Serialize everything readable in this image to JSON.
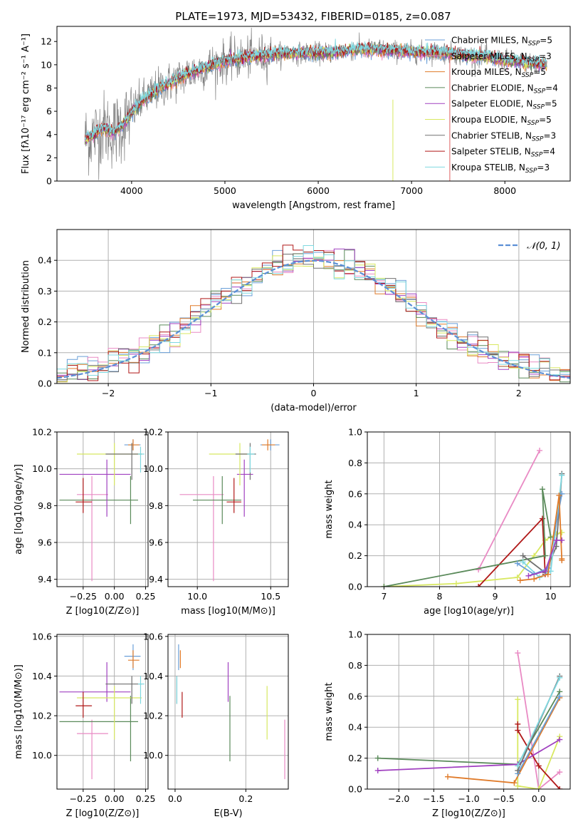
{
  "title": "PLATE=1973, MJD=53432, FIBERID=0185, z=0.087",
  "colors": {
    "chabrier_miles": "#6a9fd8",
    "salpeter_miles": "#e98ac4",
    "kroupa_miles": "#e07b2a",
    "chabrier_elodie": "#5a8a5a",
    "salpeter_elodie": "#a040c0",
    "kroupa_elodie": "#d8e860",
    "chabrier_stelib": "#707070",
    "salpeter_stelib": "#b01818",
    "kroupa_stelib": "#7fd8e0",
    "grid": "#b0b0b0",
    "gaussian": "#5b8fd6"
  },
  "chart_data": [
    {
      "id": "spectrum",
      "type": "line",
      "xlabel": "wavelength [Angstrom, rest frame]",
      "ylabel": "Flux [fλ10⁻¹⁷ erg cm⁻² s⁻¹ A⁻¹]",
      "xlim": [
        3200,
        8700
      ],
      "ylim": [
        0,
        13.3
      ],
      "xticks": [
        4000,
        5000,
        6000,
        7000,
        8000
      ],
      "yticks": [
        0,
        2,
        4,
        6,
        8,
        10,
        12
      ],
      "grid": false,
      "legend_position": "right",
      "data_range": [
        3500,
        8450
      ],
      "continuum": {
        "x": [
          3500,
          3600,
          3700,
          3800,
          3900,
          4000,
          4100,
          4200,
          4300,
          4400,
          4500,
          4600,
          4700,
          4800,
          4900,
          5000,
          5200,
          5400,
          5600,
          5800,
          6000,
          6200,
          6400,
          6600,
          6800,
          7000,
          7200,
          7400,
          7600,
          7800,
          8000,
          8200,
          8450
        ],
        "y": [
          3.6,
          4.0,
          4.6,
          4.2,
          4.8,
          5.8,
          6.8,
          7.4,
          8.0,
          8.4,
          8.8,
          9.2,
          9.5,
          9.8,
          10.1,
          10.3,
          10.6,
          10.8,
          11.0,
          11.0,
          11.0,
          11.1,
          11.3,
          11.3,
          11.2,
          11.1,
          11.1,
          11.0,
          10.8,
          10.7,
          10.4,
          10.2,
          10.0
        ]
      },
      "series": [
        {
          "name": "Chabrier MILES, N_SSP=5",
          "color_key": "chabrier_miles"
        },
        {
          "name": "Salpeter MILES, N_SSP=3",
          "color_key": "salpeter_miles"
        },
        {
          "name": "Kroupa MILES, N_SSP=5",
          "color_key": "kroupa_miles"
        },
        {
          "name": "Chabrier ELODIE, N_SSP=4",
          "color_key": "chabrier_elodie"
        },
        {
          "name": "Salpeter ELODIE, N_SSP=5",
          "color_key": "salpeter_elodie"
        },
        {
          "name": "Kroupa ELODIE, N_SSP=5",
          "color_key": "kroupa_elodie"
        },
        {
          "name": "Chabrier STELIB, N_SSP=3",
          "color_key": "chabrier_stelib"
        },
        {
          "name": "Salpeter STELIB, N_SSP=4",
          "color_key": "salpeter_stelib"
        },
        {
          "name": "Kroupa STELIB, N_SSP=3",
          "color_key": "kroupa_stelib"
        }
      ]
    },
    {
      "id": "residuals",
      "type": "line",
      "xlabel": "(data-model)/error",
      "ylabel": "Normed distribution",
      "xlim": [
        -2.5,
        2.5
      ],
      "ylim": [
        0,
        0.5
      ],
      "xticks": [
        -2,
        -1,
        0,
        1,
        2
      ],
      "yticks": [
        0.0,
        0.1,
        0.2,
        0.3,
        0.4
      ],
      "grid": true,
      "legend_position": "top-right",
      "gaussian_label": "𝒩(0, 1)",
      "bin_width": 0.1
    },
    {
      "id": "z_age",
      "type": "scatter",
      "xlabel": "Z [log10(Z/Z⊙)]",
      "ylabel": "age [log10(age/yr)]",
      "xlim": [
        -0.46,
        0.27
      ],
      "ylim": [
        9.36,
        10.2
      ],
      "xticks": [
        -0.25,
        0.0,
        0.25
      ],
      "yticks": [
        9.4,
        9.6,
        9.8,
        10.0,
        10.2
      ],
      "grid": true,
      "points": [
        {
          "series": "chabrier_miles",
          "x": 0.15,
          "y": 10.13,
          "xerr": [
            0.07,
            0.06
          ],
          "yerr": [
            0.03,
            0.03
          ]
        },
        {
          "series": "salpeter_miles",
          "x": -0.18,
          "y": 9.86,
          "xerr": [
            0.12,
            0.13
          ],
          "yerr": [
            0.47,
            0.1
          ]
        },
        {
          "series": "kroupa_miles",
          "x": 0.15,
          "y": 10.13,
          "xerr": [
            0.04,
            0.05
          ],
          "yerr": [
            0.03,
            0.03
          ]
        },
        {
          "series": "chabrier_elodie",
          "x": 0.13,
          "y": 9.83,
          "xerr": [
            0.57,
            0.06
          ],
          "yerr": [
            0.13,
            0.13
          ]
        },
        {
          "series": "salpeter_elodie",
          "x": -0.06,
          "y": 9.97,
          "xerr": [
            0.38,
            0.19
          ],
          "yerr": [
            0.23,
            0.08
          ]
        },
        {
          "series": "kroupa_elodie",
          "x": 0.0,
          "y": 10.08,
          "xerr": [
            0.3,
            0.22
          ],
          "yerr": [
            0.17,
            0.06
          ]
        },
        {
          "series": "chabrier_stelib",
          "x": 0.14,
          "y": 10.08,
          "xerr": [
            0.21,
            0.08
          ],
          "yerr": [
            0.14,
            0.06
          ]
        },
        {
          "series": "salpeter_stelib",
          "x": -0.25,
          "y": 9.82,
          "xerr": [
            0.06,
            0.07
          ],
          "yerr": [
            0.06,
            0.13
          ]
        },
        {
          "series": "kroupa_stelib",
          "x": 0.21,
          "y": 10.08,
          "xerr": [
            0.02,
            0.03
          ],
          "yerr": [
            0.1,
            0.04
          ]
        }
      ]
    },
    {
      "id": "mass_age",
      "type": "scatter",
      "xlabel": "mass [log10(M/M⊙)]",
      "ylabel": "",
      "xlim": [
        9.8,
        10.62
      ],
      "ylim": [
        9.36,
        10.2
      ],
      "xticks": [
        10.0,
        10.5
      ],
      "yticks": [
        9.4,
        9.6,
        9.8,
        10.0,
        10.2
      ],
      "grid": true,
      "points": [
        {
          "series": "chabrier_miles",
          "x": 10.5,
          "y": 10.13,
          "xerr": [
            0.07,
            0.06
          ],
          "yerr": [
            0.03,
            0.03
          ]
        },
        {
          "series": "salpeter_miles",
          "x": 10.11,
          "y": 9.86,
          "xerr": [
            0.23,
            0.07
          ],
          "yerr": [
            0.47,
            0.1
          ]
        },
        {
          "series": "kroupa_miles",
          "x": 10.48,
          "y": 10.13,
          "xerr": [
            0.04,
            0.05
          ],
          "yerr": [
            0.03,
            0.03
          ]
        },
        {
          "series": "chabrier_elodie",
          "x": 10.17,
          "y": 9.83,
          "xerr": [
            0.2,
            0.13
          ],
          "yerr": [
            0.13,
            0.13
          ]
        },
        {
          "series": "salpeter_elodie",
          "x": 10.32,
          "y": 9.97,
          "xerr": [
            0.05,
            0.06
          ],
          "yerr": [
            0.23,
            0.08
          ]
        },
        {
          "series": "kroupa_elodie",
          "x": 10.29,
          "y": 10.08,
          "xerr": [
            0.21,
            0.06
          ],
          "yerr": [
            0.17,
            0.06
          ]
        },
        {
          "series": "chabrier_stelib",
          "x": 10.36,
          "y": 10.08,
          "xerr": [
            0.1,
            0.04
          ],
          "yerr": [
            0.14,
            0.06
          ]
        },
        {
          "series": "salpeter_stelib",
          "x": 10.25,
          "y": 9.82,
          "xerr": [
            0.05,
            0.05
          ],
          "yerr": [
            0.06,
            0.13
          ]
        },
        {
          "series": "kroupa_stelib",
          "x": 10.36,
          "y": 10.08,
          "xerr": [
            0.02,
            0.03
          ],
          "yerr": [
            0.1,
            0.04
          ]
        }
      ]
    },
    {
      "id": "age_weight",
      "type": "line",
      "xlabel": "age [log10(age/yr)]",
      "ylabel": "mass weight",
      "xlim": [
        6.7,
        10.35
      ],
      "ylim": [
        0,
        1.0
      ],
      "xticks": [
        7,
        8,
        9,
        10
      ],
      "yticks": [
        0.0,
        0.2,
        0.4,
        0.6,
        0.8,
        1.0
      ],
      "grid": true,
      "series": [
        {
          "key": "kroupa_elodie",
          "x": [
            7.0,
            8.3,
            9.4,
            9.7,
            9.9,
            10.1,
            10.2
          ],
          "y": [
            0.0,
            0.02,
            0.06,
            0.2,
            0.3,
            0.34,
            0.35
          ]
        },
        {
          "key": "salpeter_miles",
          "x": [
            8.7,
            9.8
          ],
          "y": [
            0.11,
            0.88
          ]
        },
        {
          "key": "salpeter_stelib",
          "x": [
            8.7,
            9.85,
            9.9
          ],
          "y": [
            0.0,
            0.44,
            0.08
          ]
        },
        {
          "key": "chabrier_elodie",
          "x": [
            7.0,
            9.9,
            9.85,
            10.0
          ],
          "y": [
            0.0,
            0.2,
            0.63,
            0.32
          ]
        },
        {
          "key": "chabrier_stelib",
          "x": [
            9.5,
            9.9,
            10.1,
            10.2
          ],
          "y": [
            0.2,
            0.09,
            0.26,
            0.73
          ]
        },
        {
          "key": "kroupa_stelib",
          "x": [
            9.5,
            9.8,
            10.0,
            10.2
          ],
          "y": [
            0.16,
            0.06,
            0.1,
            0.72
          ]
        },
        {
          "key": "chabrier_miles",
          "x": [
            9.4,
            9.7,
            9.95,
            10.2
          ],
          "y": [
            0.15,
            0.08,
            0.12,
            0.6
          ]
        },
        {
          "key": "kroupa_miles",
          "x": [
            9.45,
            9.7,
            9.95,
            10.15,
            10.2,
            10.2
          ],
          "y": [
            0.04,
            0.05,
            0.08,
            0.59,
            0.17,
            0.18
          ]
        },
        {
          "key": "salpeter_elodie",
          "x": [
            9.6,
            9.9,
            10.1,
            10.2
          ],
          "y": [
            0.07,
            0.1,
            0.3,
            0.3
          ]
        }
      ]
    },
    {
      "id": "z_mass",
      "type": "scatter",
      "xlabel": "Z [log10(Z/Z⊙)]",
      "ylabel": "mass [log10(M/M⊙)]",
      "xlim": [
        -0.46,
        0.27
      ],
      "ylim": [
        9.83,
        10.61
      ],
      "xticks": [
        -0.25,
        0.0,
        0.25
      ],
      "yticks": [
        10.0,
        10.2,
        10.4,
        10.6
      ],
      "grid": true,
      "points": [
        {
          "series": "chabrier_miles",
          "x": 0.15,
          "y": 10.5,
          "xerr": [
            0.07,
            0.06
          ],
          "yerr": [
            0.07,
            0.06
          ]
        },
        {
          "series": "salpeter_miles",
          "x": -0.18,
          "y": 10.11,
          "xerr": [
            0.12,
            0.13
          ],
          "yerr": [
            0.23,
            0.07
          ]
        },
        {
          "series": "kroupa_miles",
          "x": 0.15,
          "y": 10.48,
          "xerr": [
            0.04,
            0.05
          ],
          "yerr": [
            0.04,
            0.05
          ]
        },
        {
          "series": "chabrier_elodie",
          "x": 0.13,
          "y": 10.17,
          "xerr": [
            0.57,
            0.06
          ],
          "yerr": [
            0.2,
            0.13
          ]
        },
        {
          "series": "salpeter_elodie",
          "x": -0.06,
          "y": 10.32,
          "xerr": [
            0.38,
            0.19
          ],
          "yerr": [
            0.05,
            0.15
          ]
        },
        {
          "series": "kroupa_elodie",
          "x": 0.0,
          "y": 10.29,
          "xerr": [
            0.3,
            0.22
          ],
          "yerr": [
            0.21,
            0.06
          ]
        },
        {
          "series": "chabrier_stelib",
          "x": 0.14,
          "y": 10.36,
          "xerr": [
            0.21,
            0.08
          ],
          "yerr": [
            0.1,
            0.04
          ]
        },
        {
          "series": "salpeter_stelib",
          "x": -0.25,
          "y": 10.25,
          "xerr": [
            0.06,
            0.07
          ],
          "yerr": [
            0.06,
            0.07
          ]
        },
        {
          "series": "kroupa_stelib",
          "x": 0.21,
          "y": 10.36,
          "xerr": [
            0.02,
            0.03
          ],
          "yerr": [
            0.1,
            0.04
          ]
        }
      ]
    },
    {
      "id": "ebv_mass",
      "type": "scatter",
      "xlabel": "E(B-V)",
      "ylabel": "",
      "xlim": [
        -0.02,
        0.32
      ],
      "ylim": [
        9.83,
        10.61
      ],
      "xticks": [
        0.0,
        0.2
      ],
      "yticks": [
        10.0,
        10.2,
        10.4,
        10.6
      ],
      "grid": true,
      "points": [
        {
          "series": "chabrier_miles",
          "x": 0.01,
          "y": 10.5,
          "xerr": [
            0,
            0
          ],
          "yerr": [
            0.07,
            0.06
          ]
        },
        {
          "series": "kroupa_miles",
          "x": 0.015,
          "y": 10.48,
          "xerr": [
            0,
            0
          ],
          "yerr": [
            0.04,
            0.05
          ]
        },
        {
          "series": "salpeter_stelib",
          "x": 0.02,
          "y": 10.25,
          "xerr": [
            0,
            0
          ],
          "yerr": [
            0.06,
            0.07
          ]
        },
        {
          "series": "chabrier_stelib",
          "x": 0.005,
          "y": 10.36,
          "xerr": [
            0,
            0
          ],
          "yerr": [
            0.1,
            0.04
          ]
        },
        {
          "series": "kroupa_stelib",
          "x": 0.005,
          "y": 10.36,
          "xerr": [
            0,
            0
          ],
          "yerr": [
            0.1,
            0.04
          ]
        },
        {
          "series": "salpeter_elodie",
          "x": 0.15,
          "y": 10.32,
          "xerr": [
            0,
            0
          ],
          "yerr": [
            0.05,
            0.15
          ]
        },
        {
          "series": "chabrier_elodie",
          "x": 0.155,
          "y": 10.17,
          "xerr": [
            0,
            0
          ],
          "yerr": [
            0.2,
            0.13
          ]
        },
        {
          "series": "kroupa_elodie",
          "x": 0.26,
          "y": 10.29,
          "xerr": [
            0,
            0
          ],
          "yerr": [
            0.21,
            0.06
          ]
        },
        {
          "series": "salpeter_miles",
          "x": 0.31,
          "y": 10.11,
          "xerr": [
            0,
            0
          ],
          "yerr": [
            0.23,
            0.07
          ]
        }
      ]
    },
    {
      "id": "z_weight",
      "type": "line",
      "xlabel": "Z [log10(Z/Z⊙)]",
      "ylabel": "mass weight",
      "xlim": [
        -2.45,
        0.45
      ],
      "ylim": [
        0,
        1.0
      ],
      "xticks": [
        -2.0,
        -1.5,
        -1.0,
        -0.5,
        0.0
      ],
      "yticks": [
        0.0,
        0.2,
        0.4,
        0.6,
        0.8,
        1.0
      ],
      "grid": true,
      "series": [
        {
          "key": "salpeter_miles",
          "x": [
            -0.3,
            0.0,
            0.3
          ],
          "y": [
            0.88,
            0.0,
            0.11
          ]
        },
        {
          "key": "kroupa_elodie",
          "x": [
            -0.3,
            -0.3,
            0.0,
            0.3
          ],
          "y": [
            0.58,
            0.02,
            0.0,
            0.34
          ]
        },
        {
          "key": "salpeter_stelib",
          "x": [
            -0.3,
            -0.3,
            0.0,
            0.3
          ],
          "y": [
            0.42,
            0.38,
            0.15,
            0.0
          ]
        },
        {
          "key": "chabrier_elodie",
          "x": [
            -2.3,
            -0.3,
            0.3
          ],
          "y": [
            0.2,
            0.16,
            0.63
          ]
        },
        {
          "key": "salpeter_elodie",
          "x": [
            -2.3,
            -0.3,
            0.3
          ],
          "y": [
            0.12,
            0.16,
            0.32
          ]
        },
        {
          "key": "kroupa_miles",
          "x": [
            -1.3,
            -0.35,
            0.3,
            0.3
          ],
          "y": [
            0.08,
            0.04,
            0.59,
            0.6
          ]
        },
        {
          "key": "chabrier_miles",
          "x": [
            -0.3,
            0.3
          ],
          "y": [
            0.1,
            0.6
          ]
        },
        {
          "key": "chabrier_stelib",
          "x": [
            -0.3,
            0.3
          ],
          "y": [
            0.12,
            0.73
          ]
        },
        {
          "key": "kroupa_stelib",
          "x": [
            -0.3,
            0.3
          ],
          "y": [
            0.15,
            0.72
          ]
        }
      ]
    }
  ]
}
